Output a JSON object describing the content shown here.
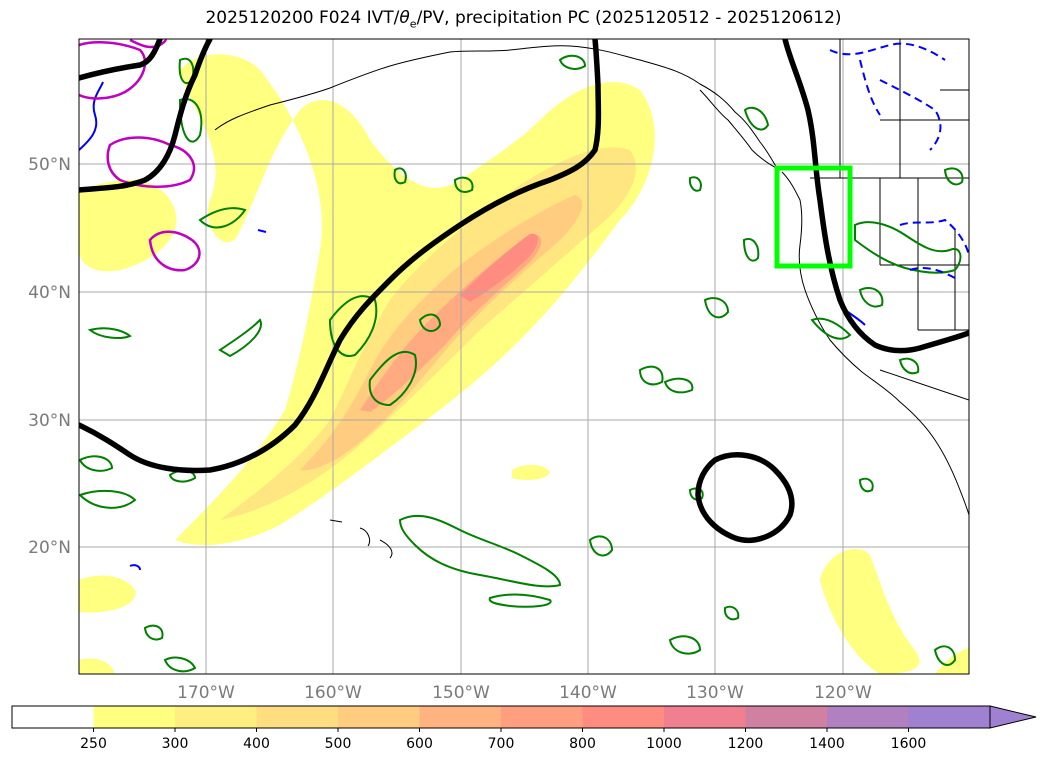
{
  "title": {
    "prefix": "2025120200 F024 IVT/",
    "theta": "θ",
    "theta_sub": "e",
    "suffix": "/PV, precipitation PC (2025120512 - 2025120612)"
  },
  "map": {
    "lat_labels": [
      "50°N",
      "40°N",
      "30°N",
      "20°N"
    ],
    "lon_labels": [
      "170°W",
      "160°W",
      "150°W",
      "140°W",
      "130°W",
      "120°W"
    ]
  },
  "colorbar": {
    "ticks": [
      "250",
      "300",
      "400",
      "500",
      "600",
      "700",
      "800",
      "1000",
      "1200",
      "1400",
      "1600"
    ],
    "colors": [
      "#ffffff",
      "#ffff80",
      "#ffee80",
      "#ffdd80",
      "#ffcc80",
      "#ffb380",
      "#ff9f80",
      "#ff8c80",
      "#f08090",
      "#d080a0",
      "#b080c0",
      "#a080d0",
      "#a080d0"
    ]
  },
  "colors": {
    "ivt_fill_1": "#ffff80",
    "ivt_fill_2": "#ffe680",
    "ivt_fill_3": "#ffcc80",
    "ivt_fill_4": "#ffaa80",
    "ivt_fill_5": "#ff8c80",
    "pv_contour": "#000000",
    "theta_e_green": "#008000",
    "theta_e_blue": "#0000ff",
    "theta_e_magenta": "#c000c0",
    "highlight_box": "#00ff00"
  }
}
